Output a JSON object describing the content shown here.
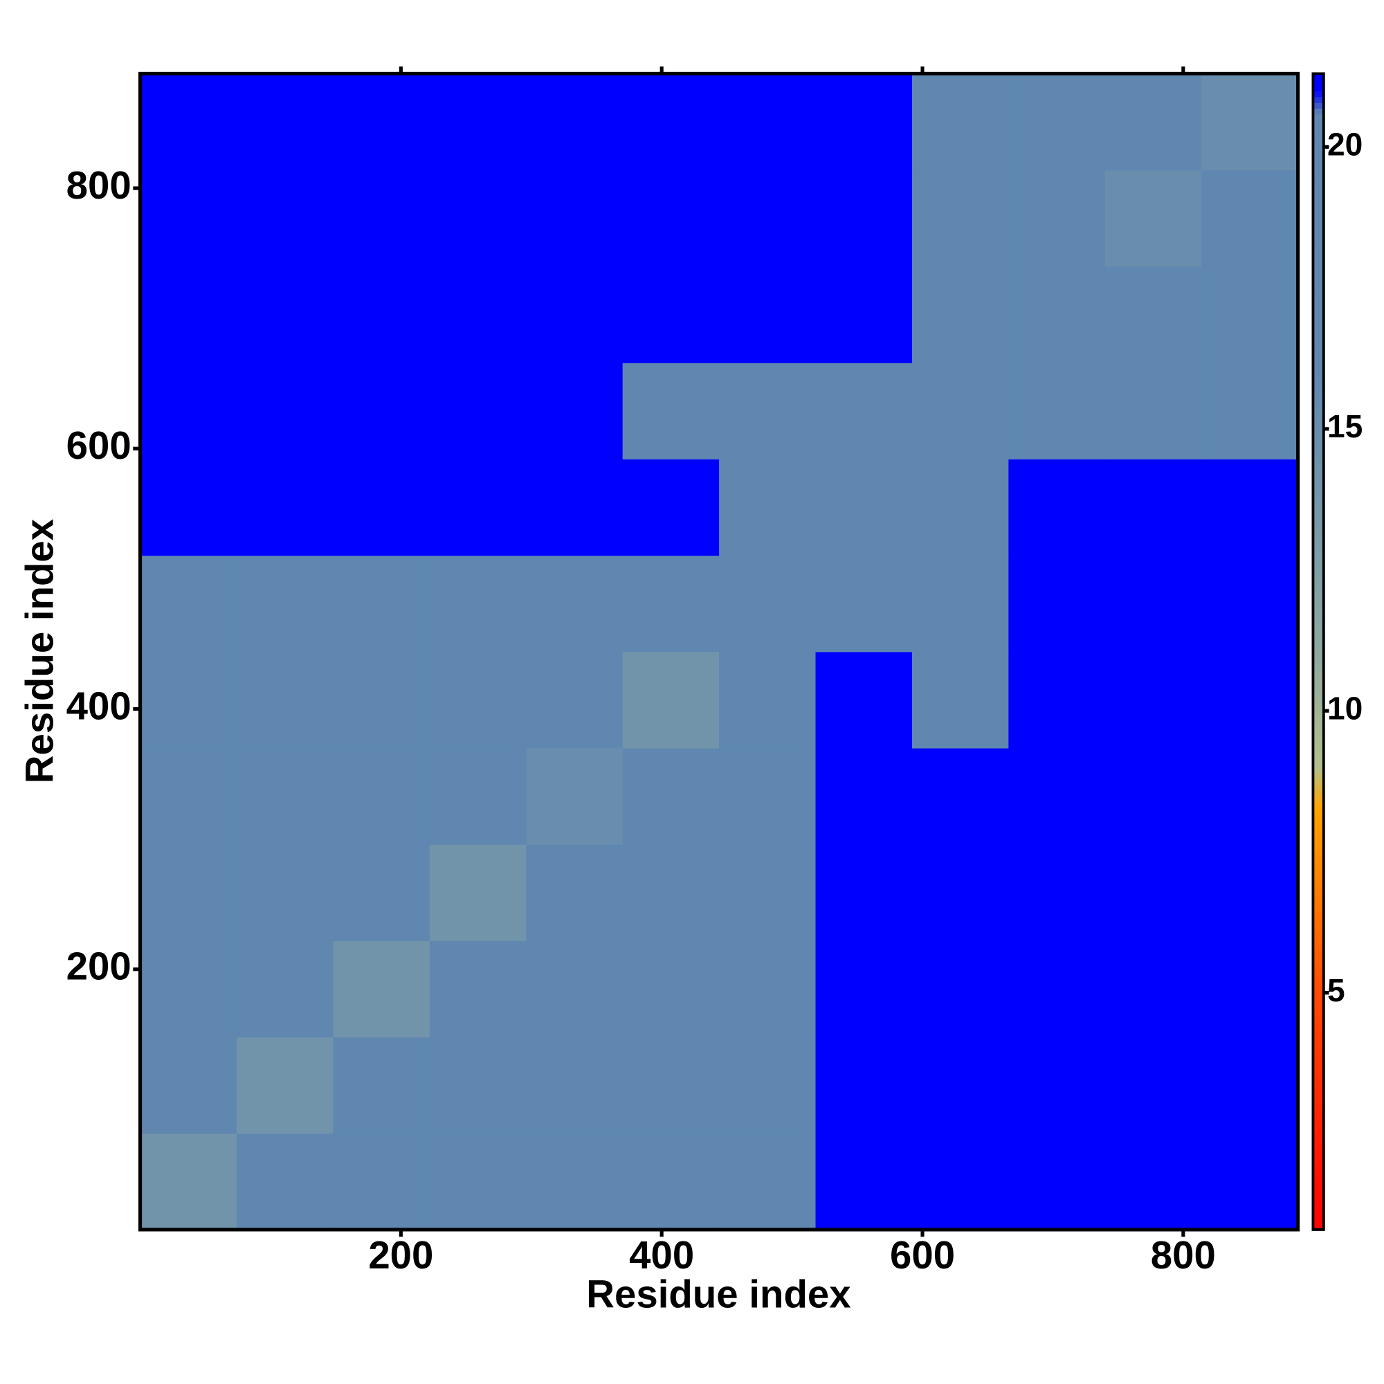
{
  "chart_data": {
    "type": "heatmap",
    "x_label": "Residue index",
    "y_label": "Residue index",
    "xbins": [
      0,
      74,
      148,
      222,
      296,
      370,
      444,
      518,
      592,
      666,
      740,
      814,
      888
    ],
    "ybins": [
      0,
      74,
      148,
      222,
      296,
      370,
      444,
      518,
      592,
      666,
      740,
      814,
      888
    ],
    "values": [
      [
        14,
        18.5,
        19,
        19.5,
        18.5,
        20,
        20.5,
        21,
        21,
        21,
        21,
        21
      ],
      [
        18.5,
        14,
        17,
        17.5,
        18,
        19.5,
        20.5,
        21,
        21,
        21,
        21,
        21
      ],
      [
        19,
        17,
        14,
        16.5,
        18,
        19,
        20,
        21,
        21,
        21,
        21,
        21
      ],
      [
        19.5,
        17.5,
        16.5,
        14,
        17.5,
        18.5,
        19.5,
        21,
        21,
        21,
        21,
        21
      ],
      [
        18.5,
        18,
        18,
        17.5,
        15,
        16.5,
        18,
        21,
        21,
        21,
        21,
        21
      ],
      [
        20,
        19.5,
        19,
        18.5,
        16.5,
        14,
        16,
        21,
        20.5,
        21,
        21,
        21
      ],
      [
        20.5,
        20.5,
        20,
        19.5,
        18,
        16,
        18,
        20.5,
        20.5,
        21,
        21,
        21
      ],
      [
        21,
        21,
        21,
        21,
        21,
        21,
        20.5,
        20,
        20.5,
        21,
        21,
        21
      ],
      [
        21,
        21,
        21,
        21,
        21,
        20.5,
        20.5,
        20.5,
        16,
        17.5,
        19.5,
        20
      ],
      [
        21,
        21,
        21,
        21,
        21,
        21,
        21,
        21,
        17.5,
        17,
        19.5,
        20.5
      ],
      [
        21,
        21,
        21,
        21,
        21,
        21,
        21,
        21,
        19.5,
        19.5,
        15,
        16.5
      ],
      [
        21,
        21,
        21,
        21,
        21,
        21,
        21,
        21,
        20,
        20.5,
        16.5,
        15
      ]
    ],
    "xlim": [
      0,
      888
    ],
    "ylim": [
      0,
      888
    ],
    "xticks": [
      200,
      400,
      600,
      800
    ],
    "yticks": [
      200,
      400,
      600,
      800
    ],
    "clim": [
      0.8,
      21.3
    ],
    "cticks": [
      5,
      10,
      15,
      20
    ],
    "colorscale": [
      [
        0.8,
        "#ff0000"
      ],
      [
        5,
        "#ff4a00"
      ],
      [
        8.3,
        "#ffa500"
      ],
      [
        9,
        "#b4c08c"
      ],
      [
        11,
        "#8fa8a0"
      ],
      [
        16,
        "#5f87b0"
      ],
      [
        20.6,
        "#5f87b0"
      ],
      [
        21,
        "#0000ff"
      ]
    ]
  }
}
